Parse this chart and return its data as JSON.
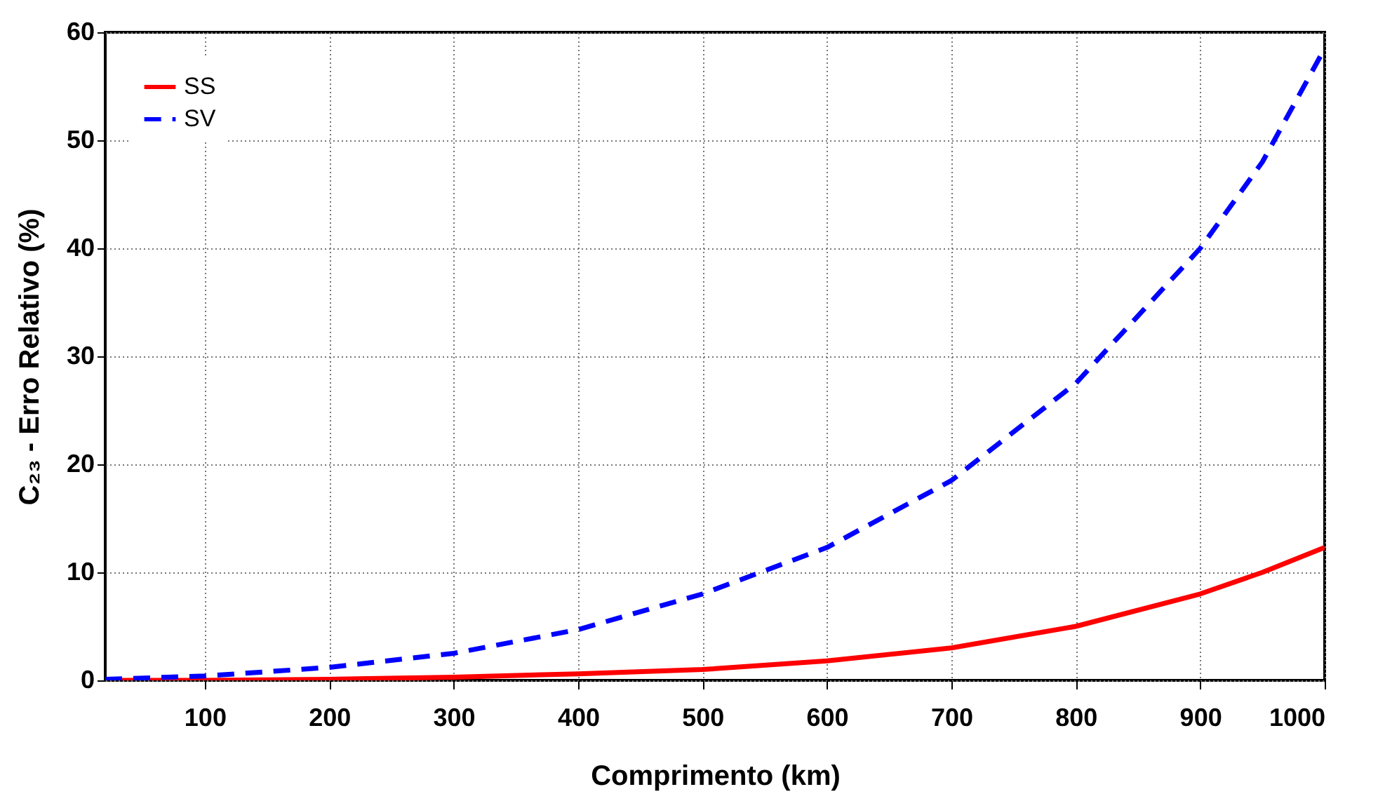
{
  "chart_data": {
    "type": "line",
    "xlabel": "Comprimento (km)",
    "ylabel": "C₂₃ -  Erro Relativo (%)",
    "x": [
      20,
      100,
      200,
      300,
      400,
      500,
      600,
      700,
      800,
      900,
      950,
      1000
    ],
    "series": [
      {
        "name": "SS",
        "color": "#ff0000",
        "line_style": "solid",
        "values": [
          0,
          0,
          0.1,
          0.3,
          0.6,
          1.0,
          1.8,
          3.0,
          5.0,
          8.0,
          10.0,
          12.3
        ]
      },
      {
        "name": "SV",
        "color": "#0000ff",
        "line_style": "dashed",
        "values": [
          0.1,
          0.4,
          1.2,
          2.5,
          4.7,
          8.0,
          12.3,
          18.5,
          27.5,
          40.0,
          48.0,
          58.5
        ]
      }
    ],
    "xlim": [
      20,
      1000
    ],
    "xticks": [
      100,
      200,
      300,
      400,
      500,
      600,
      700,
      800,
      900,
      1000
    ],
    "ylim": [
      0,
      60
    ],
    "yticks": [
      0,
      10,
      20,
      30,
      40,
      50,
      60
    ],
    "grid": true,
    "legend": "top left",
    "marker": "none"
  }
}
